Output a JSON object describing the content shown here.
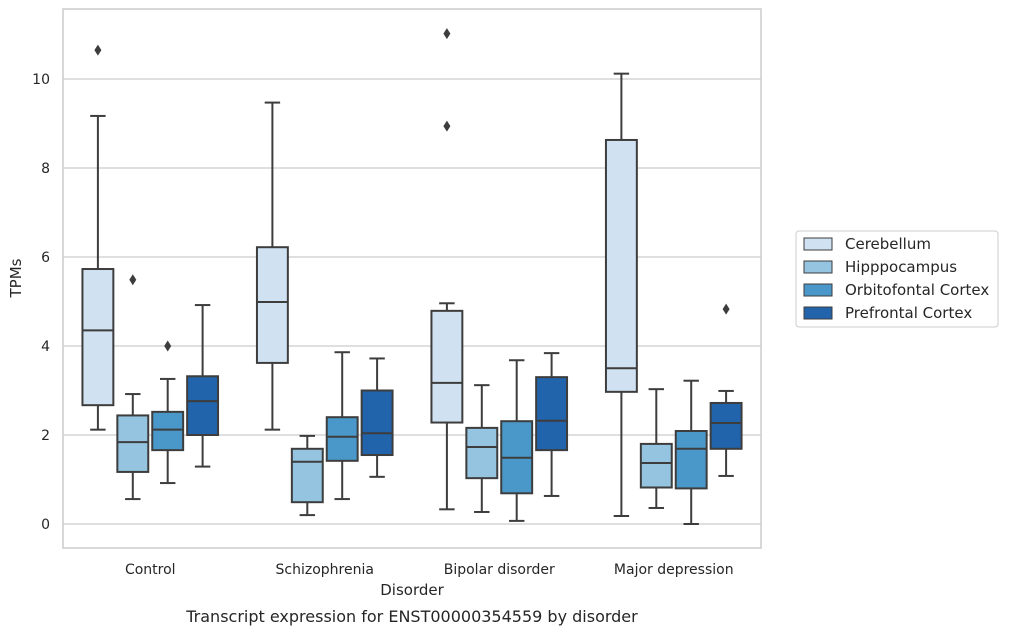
{
  "chart_data": {
    "type": "box",
    "title": "",
    "caption": "Transcript expression for ENST00000354559 by disorder",
    "xlabel": "Disorder",
    "ylabel": "TPMs",
    "ylim": [
      -0.5,
      11.6
    ],
    "yticks": [
      0,
      2,
      4,
      6,
      8,
      10
    ],
    "grid": "horizontal",
    "legend_position": "right",
    "categories": [
      "Control",
      "Schizophrenia",
      "Bipolar disorder",
      "Major depression"
    ],
    "series": [
      {
        "name": "Cerebellum",
        "color": "#d0e1f2",
        "boxes": [
          {
            "whisker_low": 2.12,
            "q1": 2.67,
            "median": 4.35,
            "q3": 5.73,
            "whisker_high": 9.17,
            "outliers": [
              10.65
            ]
          },
          {
            "whisker_low": 2.12,
            "q1": 3.62,
            "median": 4.99,
            "q3": 6.22,
            "whisker_high": 9.47,
            "outliers": []
          },
          {
            "whisker_low": 0.33,
            "q1": 2.28,
            "median": 3.17,
            "q3": 4.79,
            "whisker_high": 4.96,
            "outliers": [
              8.94,
              11.02
            ]
          },
          {
            "whisker_low": 0.18,
            "q1": 2.97,
            "median": 3.5,
            "q3": 8.63,
            "whisker_high": 10.12,
            "outliers": []
          }
        ]
      },
      {
        "name": "Hipppocampus",
        "color": "#94c4df",
        "boxes": [
          {
            "whisker_low": 0.56,
            "q1": 1.17,
            "median": 1.84,
            "q3": 2.44,
            "whisker_high": 2.92,
            "outliers": [
              5.49
            ]
          },
          {
            "whisker_low": 0.2,
            "q1": 0.49,
            "median": 1.4,
            "q3": 1.69,
            "whisker_high": 1.98,
            "outliers": []
          },
          {
            "whisker_low": 0.27,
            "q1": 1.03,
            "median": 1.73,
            "q3": 2.16,
            "whisker_high": 3.12,
            "outliers": []
          },
          {
            "whisker_low": 0.36,
            "q1": 0.82,
            "median": 1.37,
            "q3": 1.8,
            "whisker_high": 3.03,
            "outliers": []
          }
        ]
      },
      {
        "name": "Orbitofontal Cortex",
        "color": "#4a98c9",
        "boxes": [
          {
            "whisker_low": 0.92,
            "q1": 1.66,
            "median": 2.12,
            "q3": 2.52,
            "whisker_high": 3.26,
            "outliers": [
              4.0
            ]
          },
          {
            "whisker_low": 0.56,
            "q1": 1.42,
            "median": 1.96,
            "q3": 2.4,
            "whisker_high": 3.86,
            "outliers": []
          },
          {
            "whisker_low": 0.07,
            "q1": 0.69,
            "median": 1.49,
            "q3": 2.31,
            "whisker_high": 3.68,
            "outliers": []
          },
          {
            "whisker_low": 0.0,
            "q1": 0.8,
            "median": 1.69,
            "q3": 2.09,
            "whisker_high": 3.22,
            "outliers": []
          }
        ]
      },
      {
        "name": "Prefrontal Cortex",
        "color": "#2164ab",
        "boxes": [
          {
            "whisker_low": 1.29,
            "q1": 2.0,
            "median": 2.76,
            "q3": 3.32,
            "whisker_high": 4.92,
            "outliers": []
          },
          {
            "whisker_low": 1.06,
            "q1": 1.55,
            "median": 2.04,
            "q3": 3.0,
            "whisker_high": 3.72,
            "outliers": []
          },
          {
            "whisker_low": 0.63,
            "q1": 1.66,
            "median": 2.32,
            "q3": 3.3,
            "whisker_high": 3.84,
            "outliers": []
          },
          {
            "whisker_low": 1.08,
            "q1": 1.69,
            "median": 2.27,
            "q3": 2.72,
            "whisker_high": 2.99,
            "outliers": [
              4.83
            ]
          }
        ]
      }
    ]
  }
}
